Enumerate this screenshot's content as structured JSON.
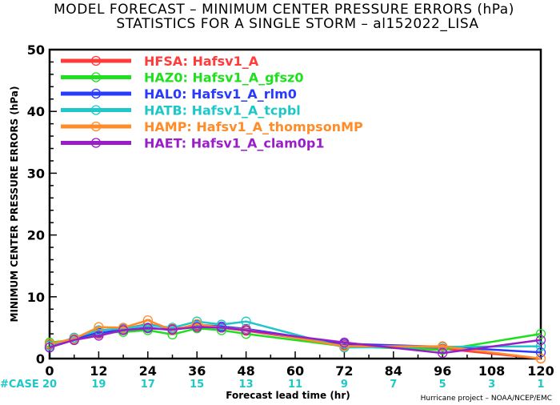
{
  "chart_data": {
    "type": "line",
    "title": "MODEL FORECAST – MINIMUM CENTER PRESSURE ERRORS (hPa)",
    "subtitle": "STATISTICS FOR A SINGLE STORM – al152022_LISA",
    "xlabel": "Forecast lead time (hr)",
    "ylabel": "MINIMUM CENTER PRESSURE ERRORS (hPa)",
    "xlim": [
      0,
      120
    ],
    "ylim": [
      0,
      50
    ],
    "x_ticks": [
      0,
      12,
      24,
      36,
      48,
      60,
      72,
      84,
      96,
      108,
      120
    ],
    "y_ticks": [
      0,
      10,
      20,
      30,
      40,
      50
    ],
    "grid": false,
    "legend_position": "top-left",
    "case_label": "#CASE",
    "cases": [
      20,
      19,
      17,
      15,
      13,
      11,
      9,
      7,
      5,
      3,
      1
    ],
    "credit": "Hurricane project – NOAA/NCEP/EMC",
    "series": [
      {
        "name": "HFSA:  Hafsv1_A",
        "color": "#ff3b3b",
        "points": [
          [
            0,
            2.2
          ],
          [
            6,
            3.2
          ],
          [
            12,
            4.0
          ],
          [
            18,
            4.8
          ],
          [
            24,
            5.6
          ],
          [
            30,
            4.8
          ],
          [
            36,
            5.3
          ],
          [
            42,
            5.0
          ],
          [
            48,
            4.5
          ],
          [
            72,
            2.2
          ],
          [
            96,
            1.6
          ],
          [
            120,
            0.0
          ]
        ]
      },
      {
        "name": "HAZ0:  Hafsv1_A_gfsz0",
        "color": "#1fe01f",
        "points": [
          [
            0,
            2.6
          ],
          [
            6,
            3.0
          ],
          [
            12,
            4.2
          ],
          [
            18,
            4.3
          ],
          [
            24,
            4.6
          ],
          [
            30,
            3.9
          ],
          [
            36,
            4.9
          ],
          [
            42,
            4.6
          ],
          [
            48,
            4.0
          ],
          [
            72,
            2.0
          ],
          [
            96,
            1.4
          ],
          [
            120,
            4.0
          ]
        ]
      },
      {
        "name": "HAL0:  Hafsv1_A_rlm0",
        "color": "#2a3bff",
        "points": [
          [
            0,
            1.8
          ],
          [
            6,
            3.2
          ],
          [
            12,
            4.2
          ],
          [
            18,
            4.6
          ],
          [
            24,
            5.0
          ],
          [
            30,
            4.6
          ],
          [
            36,
            5.5
          ],
          [
            42,
            5.2
          ],
          [
            48,
            4.8
          ],
          [
            72,
            2.4
          ],
          [
            96,
            1.9
          ],
          [
            120,
            1.0
          ]
        ]
      },
      {
        "name": "HATB:  Hafsv1_A_tcpbl",
        "color": "#1ec8c8",
        "points": [
          [
            0,
            2.1
          ],
          [
            6,
            3.4
          ],
          [
            12,
            4.6
          ],
          [
            18,
            4.9
          ],
          [
            24,
            5.4
          ],
          [
            30,
            5.0
          ],
          [
            36,
            6.0
          ],
          [
            42,
            5.5
          ],
          [
            48,
            6.0
          ],
          [
            72,
            1.8
          ],
          [
            96,
            1.9
          ],
          [
            120,
            2.0
          ]
        ]
      },
      {
        "name": "HAMP:  Hafsv1_A_thompsonMP",
        "color": "#ff8c28",
        "points": [
          [
            0,
            2.4
          ],
          [
            6,
            3.2
          ],
          [
            12,
            5.1
          ],
          [
            18,
            5.0
          ],
          [
            24,
            6.2
          ],
          [
            30,
            4.6
          ],
          [
            36,
            5.6
          ],
          [
            42,
            5.0
          ],
          [
            48,
            4.7
          ],
          [
            72,
            2.0
          ],
          [
            96,
            2.0
          ],
          [
            120,
            0.0
          ]
        ]
      },
      {
        "name": "HAET:  Hafsv1_A_clam0p1",
        "color": "#9a1ec8",
        "points": [
          [
            0,
            1.8
          ],
          [
            6,
            3.0
          ],
          [
            12,
            3.7
          ],
          [
            18,
            4.6
          ],
          [
            24,
            4.9
          ],
          [
            30,
            4.7
          ],
          [
            36,
            5.1
          ],
          [
            42,
            5.0
          ],
          [
            48,
            4.6
          ],
          [
            72,
            2.6
          ],
          [
            96,
            0.9
          ],
          [
            120,
            3.0
          ]
        ]
      }
    ]
  }
}
